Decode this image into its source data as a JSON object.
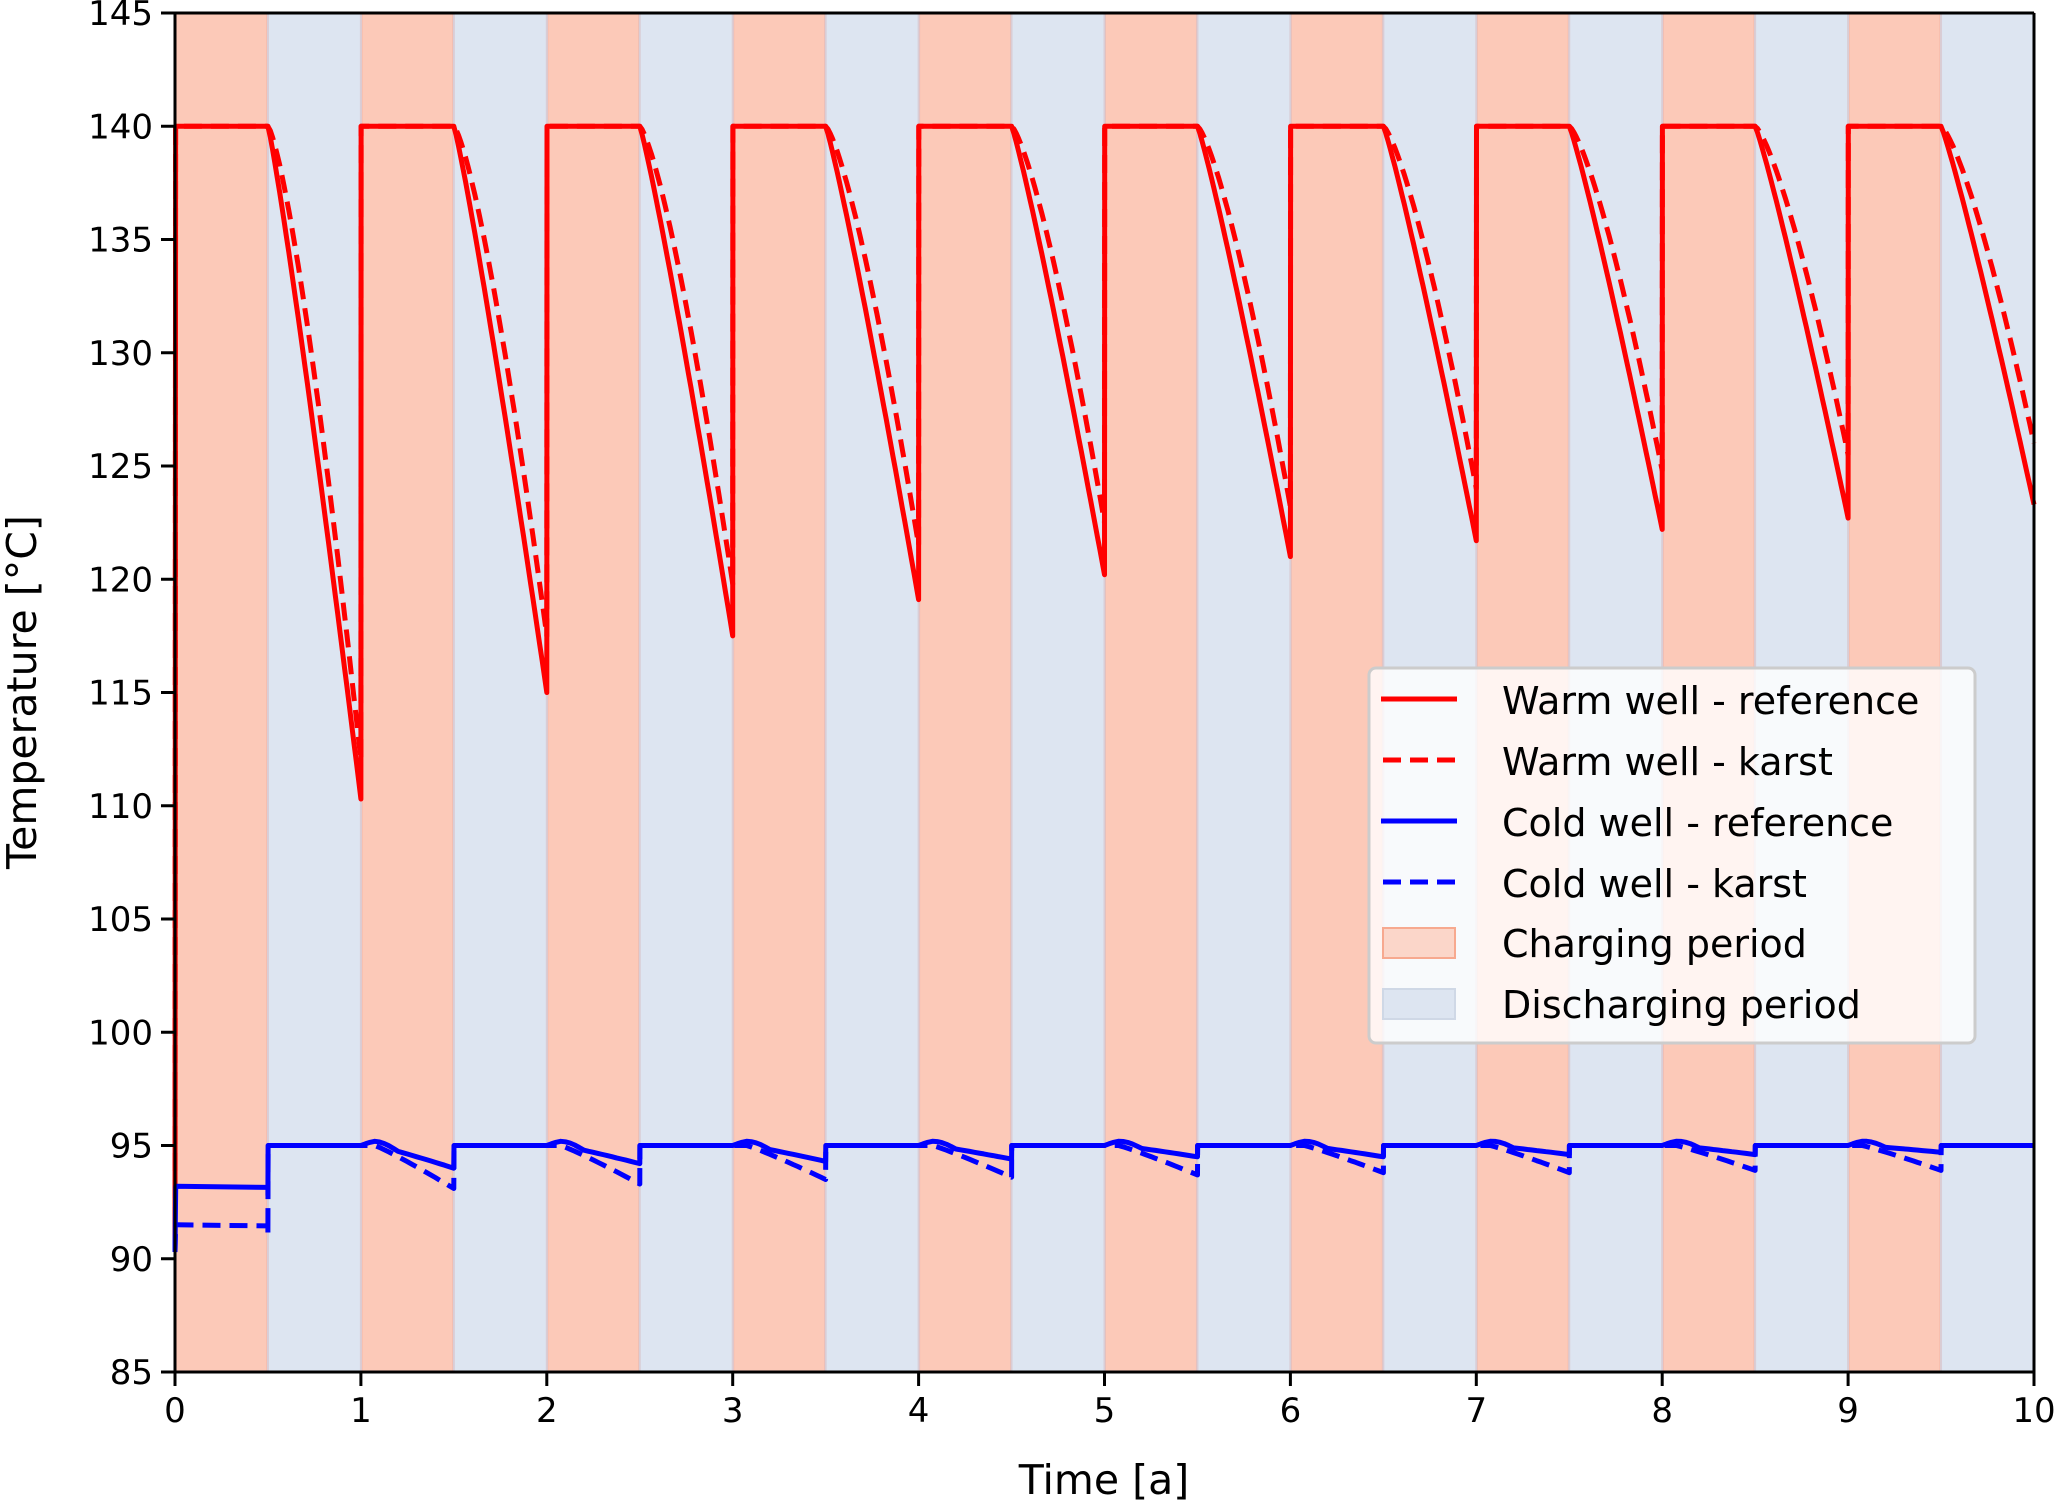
{
  "chart_data": {
    "type": "line",
    "title": "",
    "xlabel": "Time [a]",
    "ylabel": "Temperature [°C]",
    "xlim": [
      0,
      10
    ],
    "ylim": [
      85,
      145
    ],
    "xticks": [
      "0",
      "1",
      "2",
      "3",
      "4",
      "5",
      "6",
      "7",
      "8",
      "9",
      "10"
    ],
    "yticks": [
      "85",
      "90",
      "95",
      "100",
      "105",
      "110",
      "115",
      "120",
      "125",
      "130",
      "135",
      "140",
      "145"
    ],
    "grid": false,
    "legend_position": "center-right",
    "periods": {
      "charging": {
        "label": "Charging period",
        "color": "#fcc9b8",
        "intervals": [
          [
            0,
            0.5
          ],
          [
            1,
            1.5
          ],
          [
            2,
            2.5
          ],
          [
            3,
            3.5
          ],
          [
            4,
            4.5
          ],
          [
            5,
            5.5
          ],
          [
            6,
            6.5
          ],
          [
            7,
            7.5
          ],
          [
            8,
            8.5
          ],
          [
            9,
            9.5
          ]
        ]
      },
      "discharging": {
        "label": "Discharging period",
        "color": "#dde5f1",
        "intervals": [
          [
            0.5,
            1
          ],
          [
            1.5,
            2
          ],
          [
            2.5,
            3
          ],
          [
            3.5,
            4
          ],
          [
            4.5,
            5
          ],
          [
            5.5,
            6
          ],
          [
            6.5,
            7
          ],
          [
            7.5,
            8
          ],
          [
            8.5,
            9
          ],
          [
            9.5,
            10
          ]
        ]
      }
    },
    "series": [
      {
        "name": "Warm well - reference",
        "color": "#ff0000",
        "style": "solid",
        "charging_level": 140,
        "start_value": 90.3,
        "cycle_minima": [
          110.3,
          115.0,
          117.5,
          119.1,
          120.2,
          121.0,
          121.7,
          122.2,
          122.7,
          123.3
        ]
      },
      {
        "name": "Warm well - karst",
        "color": "#ff0000",
        "style": "dashed",
        "charging_level": 140,
        "start_value": 90.3,
        "cycle_minima": [
          112.0,
          117.5,
          119.8,
          121.5,
          122.5,
          123.2,
          124.0,
          124.8,
          125.5,
          126.0
        ]
      },
      {
        "name": "Cold well - reference",
        "color": "#0000ff",
        "style": "solid",
        "discharging_level": 95,
        "first_charge_level": 93.2,
        "cycle_peak": 95.2,
        "cycle_ends": [
          94.0,
          94.2,
          94.3,
          94.4,
          94.5,
          94.5,
          94.6,
          94.6,
          94.7
        ]
      },
      {
        "name": "Cold well - karst",
        "color": "#0000ff",
        "style": "dashed",
        "discharging_level": 95,
        "first_charge_level": 91.5,
        "cycle_peak": 95.0,
        "cycle_ends": [
          93.1,
          93.3,
          93.5,
          93.6,
          93.7,
          93.8,
          93.8,
          93.9,
          93.9
        ]
      }
    ],
    "legend": [
      "Warm well - reference",
      "Warm well - karst",
      "Cold well - reference",
      "Cold well - karst",
      "Charging period",
      "Discharging period"
    ]
  }
}
